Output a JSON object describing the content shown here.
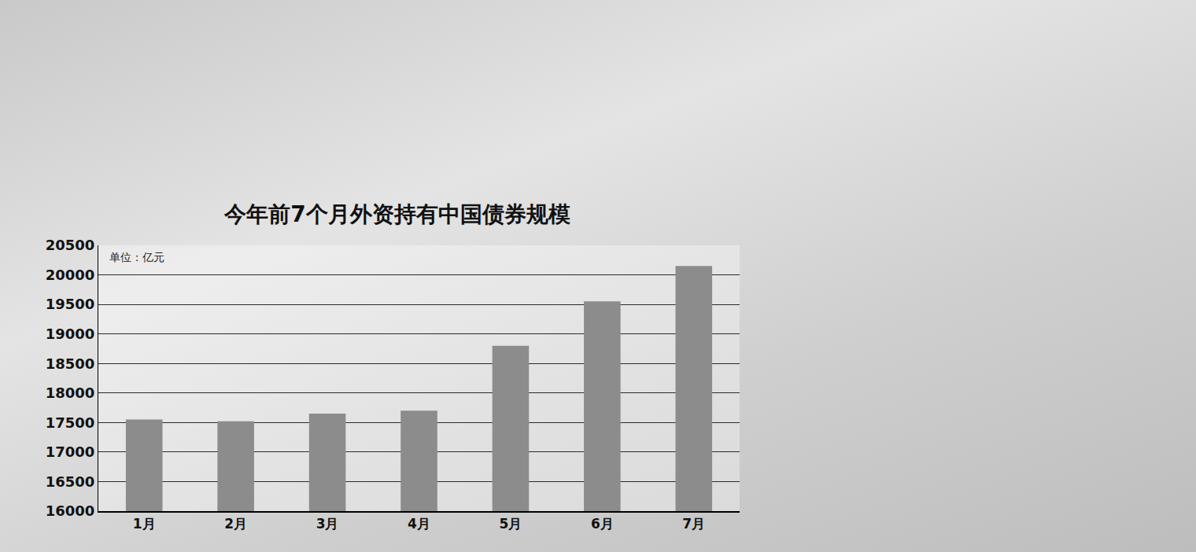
{
  "chart_data": {
    "type": "bar",
    "title": "今年前7个月外资持有中国债券规模",
    "ylabel": "单位：亿元",
    "categories": [
      "1月",
      "2月",
      "3月",
      "4月",
      "5月",
      "6月",
      "7月"
    ],
    "values": [
      17550,
      17520,
      17650,
      17700,
      18800,
      19550,
      20150
    ],
    "color": "#8c8c8c",
    "ylim": [
      16000,
      20500
    ],
    "yticks": [
      16000,
      16500,
      17000,
      17500,
      18000,
      18500,
      19000,
      19500,
      20000,
      20500
    ],
    "grid": true
  }
}
